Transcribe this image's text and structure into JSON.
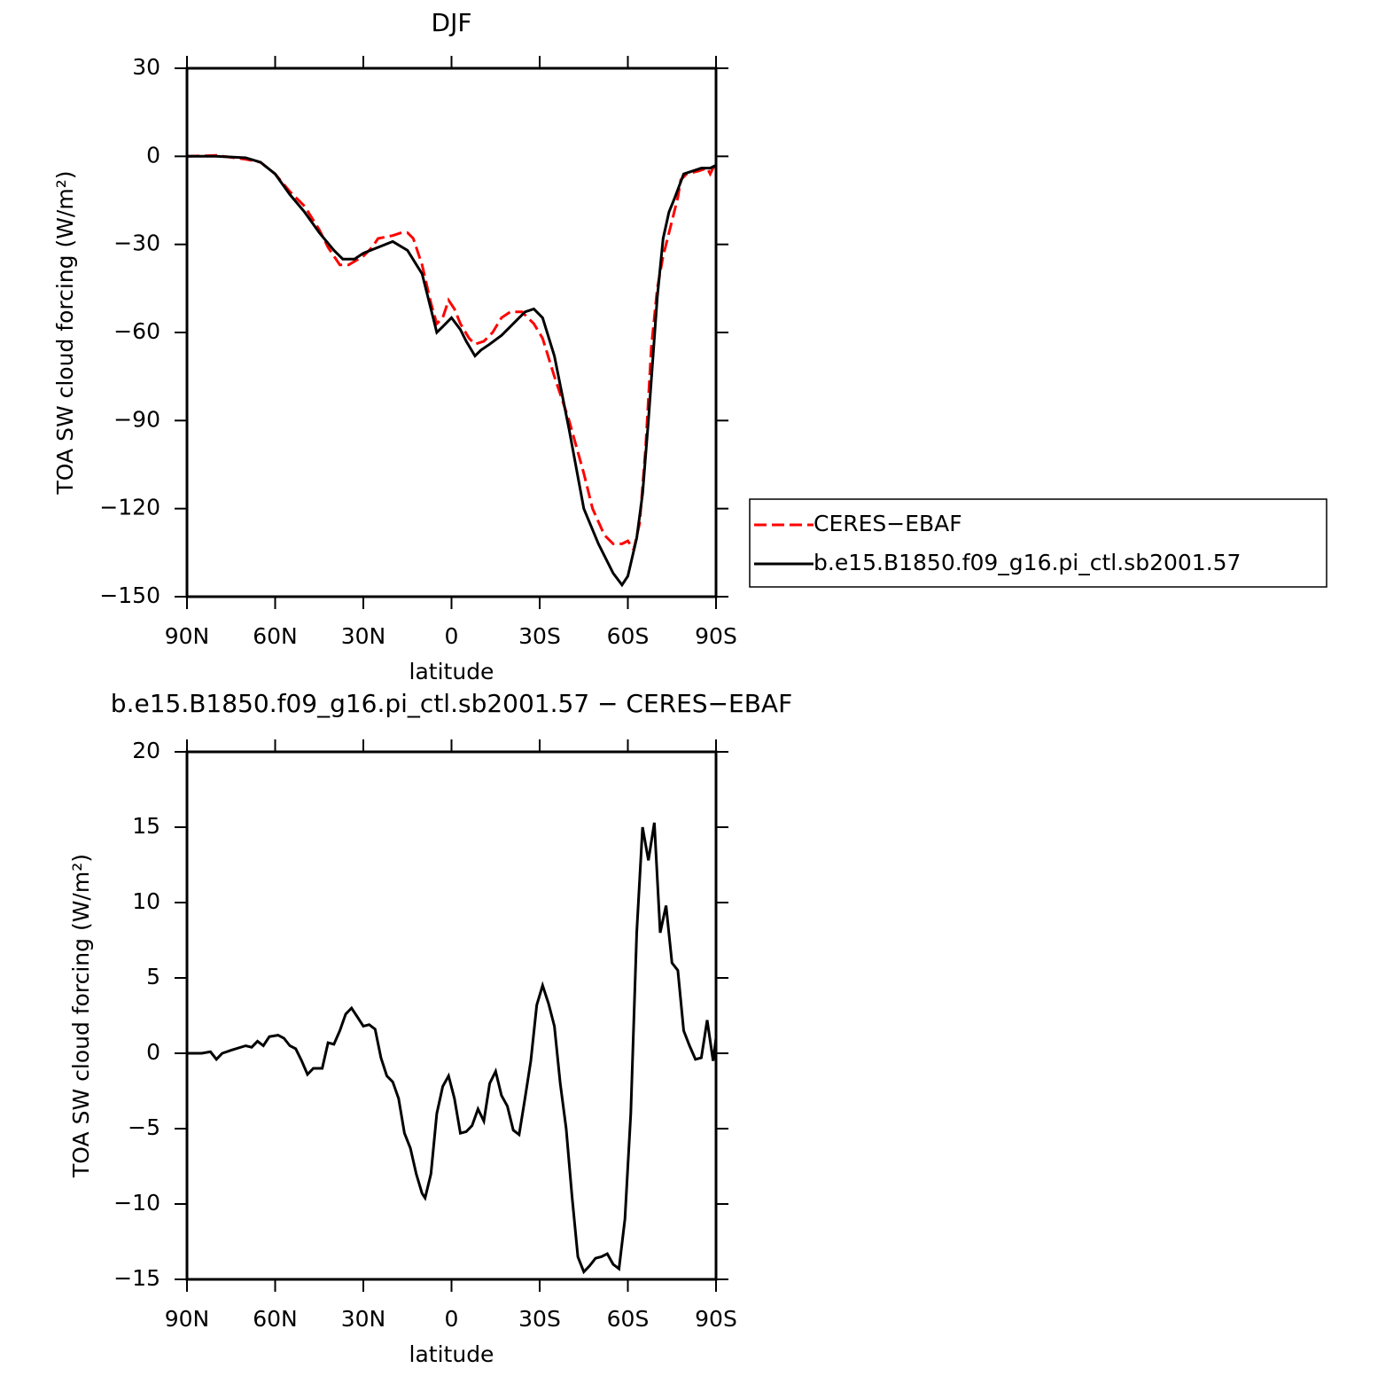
{
  "chart_data": [
    {
      "type": "line",
      "title": "DJF",
      "xlabel": "latitude",
      "ylabel": "TOA SW cloud forcing (W/m²)",
      "xlim": [
        90,
        -90
      ],
      "xticks": [
        {
          "value": 90,
          "label": "90N"
        },
        {
          "value": 60,
          "label": "60N"
        },
        {
          "value": 30,
          "label": "30N"
        },
        0,
        {
          "value": -30,
          "label": "30S"
        },
        {
          "value": -60,
          "label": "60S"
        },
        {
          "value": -90,
          "label": "90S"
        }
      ],
      "ylim": [
        -150,
        30
      ],
      "yticks": [
        30,
        0,
        {
          "value": -30,
          "label": "−30"
        },
        {
          "value": -60,
          "label": "−60"
        },
        {
          "value": -90,
          "label": "−90"
        },
        {
          "value": -120,
          "label": "−120"
        },
        {
          "value": -150,
          "label": "−150"
        }
      ],
      "legend": "right",
      "series": [
        {
          "name": "CERES−EBAF",
          "color": "#ff0000",
          "style": "dashed",
          "x": [
            90,
            80,
            70,
            65,
            60,
            55,
            50,
            45,
            42,
            38,
            35,
            30,
            27,
            25,
            20,
            17,
            15,
            13,
            10,
            7,
            5,
            3,
            1,
            -1,
            -3,
            -6,
            -8,
            -11,
            -14,
            -17,
            -20,
            -24,
            -28,
            -31,
            -35,
            -40,
            -45,
            -48,
            -52,
            -55,
            -58,
            -60,
            -62,
            -64,
            -66,
            -68,
            -70,
            -72,
            -75,
            -77,
            -78,
            -80,
            -84,
            -87,
            -88,
            -90
          ],
          "values": [
            0,
            0.3,
            -1,
            -2,
            -6,
            -12,
            -17,
            -25,
            -31,
            -37,
            -37,
            -34,
            -31,
            -28,
            -27,
            -26,
            -26,
            -28,
            -37,
            -50,
            -57,
            -55,
            -49,
            -52,
            -57,
            -62,
            -64,
            -63,
            -60,
            -55,
            -53,
            -53,
            -57,
            -62,
            -75,
            -90,
            -108,
            -120,
            -129,
            -132,
            -132,
            -131,
            -134,
            -125,
            -100,
            -65,
            -45,
            -34,
            -22,
            -14,
            -8,
            -6,
            -5,
            -4,
            -6,
            -2
          ]
        },
        {
          "name": "b.e15.B1850.f09_g16.pi_ctl.sb2001.57",
          "color": "#000000",
          "style": "solid",
          "x": [
            90,
            80,
            70,
            65,
            60,
            55,
            50,
            45,
            40,
            37,
            33,
            30,
            25,
            20,
            15,
            10,
            7,
            5,
            3,
            0,
            -3,
            -5,
            -8,
            -10,
            -13,
            -17,
            -20,
            -25,
            -28,
            -31,
            -35,
            -40,
            -45,
            -50,
            -55,
            -58,
            -60,
            -63,
            -65,
            -67,
            -70,
            -72,
            -74,
            -76,
            -79,
            -82,
            -85,
            -88,
            -90
          ],
          "values": [
            0,
            0,
            -0.5,
            -2,
            -6,
            -13,
            -19,
            -26,
            -32,
            -35,
            -35,
            -33,
            -31,
            -29,
            -32,
            -40,
            -52,
            -60,
            -58,
            -55,
            -59,
            -63,
            -68,
            -66,
            -64,
            -61,
            -58,
            -53,
            -52,
            -55,
            -68,
            -93,
            -120,
            -132,
            -142,
            -146,
            -143,
            -130,
            -115,
            -90,
            -48,
            -28,
            -19,
            -14,
            -6,
            -5,
            -4,
            -4,
            -3
          ]
        }
      ]
    },
    {
      "type": "line",
      "title": "b.e15.B1850.f09_g16.pi_ctl.sb2001.57 − CERES−EBAF",
      "xlabel": "latitude",
      "ylabel": "TOA SW cloud forcing (W/m²)",
      "xlim": [
        90,
        -90
      ],
      "xticks": [
        {
          "value": 90,
          "label": "90N"
        },
        {
          "value": 60,
          "label": "60N"
        },
        {
          "value": 30,
          "label": "30N"
        },
        0,
        {
          "value": -30,
          "label": "30S"
        },
        {
          "value": -60,
          "label": "60S"
        },
        {
          "value": -90,
          "label": "90S"
        }
      ],
      "ylim": [
        -15,
        20
      ],
      "yticks": [
        20,
        15,
        10,
        5,
        0,
        {
          "value": -5,
          "label": "−5"
        },
        {
          "value": -10,
          "label": "−10"
        },
        {
          "value": -15,
          "label": "−15"
        }
      ],
      "series": [
        {
          "color": "#000000",
          "style": "solid",
          "x": [
            90,
            85,
            82,
            80,
            78,
            75,
            70,
            68,
            66,
            64,
            62,
            59,
            57,
            55,
            53,
            51,
            49,
            47,
            44,
            42,
            40,
            38,
            36,
            34,
            32,
            30,
            28,
            26,
            24,
            22,
            20,
            18,
            16,
            14,
            12,
            10,
            9,
            7,
            5,
            3,
            1,
            -1,
            -3,
            -5,
            -7,
            -9,
            -11,
            -13,
            -15,
            -17,
            -19,
            -21,
            -23,
            -25,
            -27,
            -29,
            -31,
            -33,
            -35,
            -37,
            -39,
            -41,
            -43,
            -45,
            -47,
            -49,
            -51,
            -53,
            -55,
            -57,
            -59,
            -61,
            -63,
            -65,
            -67,
            -69,
            -71,
            -73,
            -75,
            -77,
            -79,
            -81,
            -83,
            -85,
            -87,
            -89,
            -90
          ],
          "values": [
            0,
            0,
            0.1,
            -0.4,
            0,
            0.2,
            0.5,
            0.4,
            0.8,
            0.5,
            1.1,
            1.2,
            1.0,
            0.5,
            0.3,
            -0.5,
            -1.4,
            -1.0,
            -1.0,
            0.7,
            0.6,
            1.5,
            2.6,
            3.0,
            2.4,
            1.8,
            1.9,
            1.6,
            -0.3,
            -1.5,
            -1.9,
            -3.0,
            -5.3,
            -6.3,
            -8.0,
            -9.3,
            -9.6,
            -8.0,
            -4.0,
            -2.2,
            -1.5,
            -3.0,
            -5.3,
            -5.2,
            -4.8,
            -3.7,
            -4.5,
            -2.0,
            -1.2,
            -2.8,
            -3.5,
            -5.1,
            -5.4,
            -3.0,
            -0.5,
            3.2,
            4.5,
            3.3,
            1.8,
            -2.0,
            -5.0,
            -9.5,
            -13.5,
            -14.5,
            -14.1,
            -13.6,
            -13.5,
            -13.3,
            -14.0,
            -14.3,
            -11.0,
            -4.0,
            8.0,
            15.0,
            12.8,
            15.3,
            8.0,
            9.8,
            6.0,
            5.5,
            1.5,
            0.5,
            -0.4,
            -0.3,
            2.2,
            -0.5,
            1.0
          ]
        }
      ]
    }
  ]
}
